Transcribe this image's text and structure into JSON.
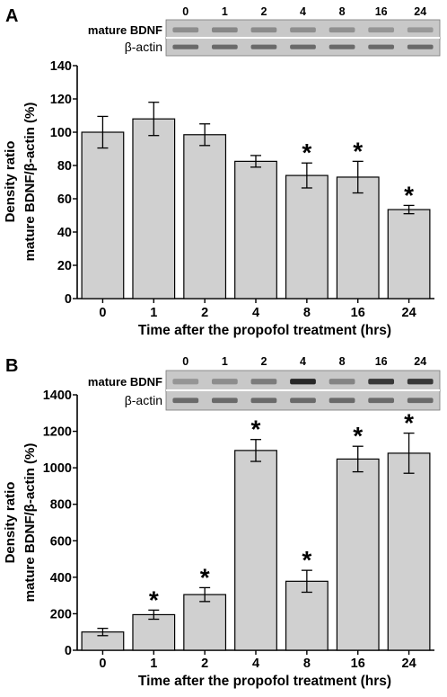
{
  "chart_data": [
    {
      "panel_label": "A",
      "type": "bar",
      "categories": [
        "0",
        "1",
        "2",
        "4",
        "8",
        "16",
        "24"
      ],
      "values": [
        100,
        108,
        98.5,
        82.5,
        74,
        73,
        53.5
      ],
      "errors": [
        9.5,
        10,
        6.5,
        3.5,
        7.5,
        9.5,
        2.5
      ],
      "significant": [
        false,
        false,
        false,
        false,
        true,
        true,
        true
      ],
      "significance_marker": "*",
      "xlabel": "Time after the propofol treatment (hrs)",
      "ylabel_line1": "Density ratio",
      "ylabel_line2": "mature BDNF/β-actin (%)",
      "ylim": [
        0,
        140
      ],
      "yticks": [
        0,
        20,
        40,
        60,
        80,
        100,
        120,
        140
      ],
      "bar_color": "#d0d0d0",
      "grid": false,
      "blot": {
        "lanes": [
          "0",
          "1",
          "2",
          "4",
          "8",
          "16",
          "24"
        ],
        "rows": [
          {
            "label": "mature BDNF",
            "intensity": [
              0.35,
              0.38,
              0.36,
              0.34,
              0.33,
              0.3,
              0.28
            ]
          },
          {
            "label": "β-actin",
            "intensity": [
              0.55,
              0.55,
              0.55,
              0.55,
              0.55,
              0.55,
              0.55
            ]
          }
        ]
      }
    },
    {
      "panel_label": "B",
      "type": "bar",
      "categories": [
        "0",
        "1",
        "2",
        "4",
        "8",
        "16",
        "24"
      ],
      "values": [
        100,
        195,
        305,
        1095,
        378,
        1048,
        1080
      ],
      "errors": [
        20,
        25,
        38,
        60,
        60,
        70,
        110
      ],
      "significant": [
        false,
        true,
        true,
        true,
        true,
        true,
        true
      ],
      "significance_marker": "*",
      "xlabel": "Time after the propofol treatment (hrs)",
      "ylabel_line1": "Density ratio",
      "ylabel_line2": "mature BDNF/β-actin (%)",
      "ylim": [
        0,
        1400
      ],
      "yticks": [
        0,
        200,
        400,
        600,
        800,
        1000,
        1200,
        1400
      ],
      "bar_color": "#d0d0d0",
      "grid": false,
      "blot": {
        "lanes": [
          "0",
          "1",
          "2",
          "4",
          "8",
          "16",
          "24"
        ],
        "rows": [
          {
            "label": "mature BDNF",
            "intensity": [
              0.3,
              0.35,
              0.45,
              0.95,
              0.4,
              0.85,
              0.85
            ]
          },
          {
            "label": "β-actin",
            "intensity": [
              0.55,
              0.55,
              0.55,
              0.55,
              0.55,
              0.55,
              0.55
            ]
          }
        ]
      }
    }
  ]
}
